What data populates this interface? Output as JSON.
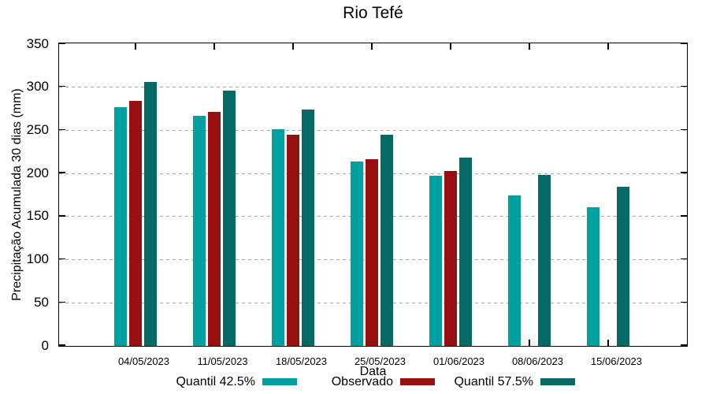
{
  "title": "Rio Tefé",
  "chart_data": {
    "type": "bar",
    "title": "Rio Tefé",
    "xlabel": "Data",
    "ylabel": "Precipitação Acumulada 30 dias (mm)",
    "ylim": [
      0,
      350
    ],
    "yticks": [
      0,
      50,
      100,
      150,
      200,
      250,
      300,
      350
    ],
    "grid": "horizontal-dashed",
    "grid_color": "#a6a6a6",
    "axis_color": "#000000",
    "legend_position": "bottom",
    "categories": [
      "04/05/2023",
      "11/05/2023",
      "18/05/2023",
      "25/05/2023",
      "01/06/2023",
      "08/06/2023",
      "15/06/2023"
    ],
    "series": [
      {
        "name": "Quantil 42.5%",
        "color": "#00a0a0",
        "values": [
          277,
          267,
          251,
          214,
          197,
          175,
          161
        ]
      },
      {
        "name": "Observado",
        "color": "#970f0f",
        "values": [
          284,
          271,
          245,
          217,
          203,
          null,
          null
        ]
      },
      {
        "name": "Quantil 57.5%",
        "color": "#056a66",
        "values": [
          306,
          296,
          274,
          245,
          218,
          198,
          185
        ]
      }
    ]
  }
}
